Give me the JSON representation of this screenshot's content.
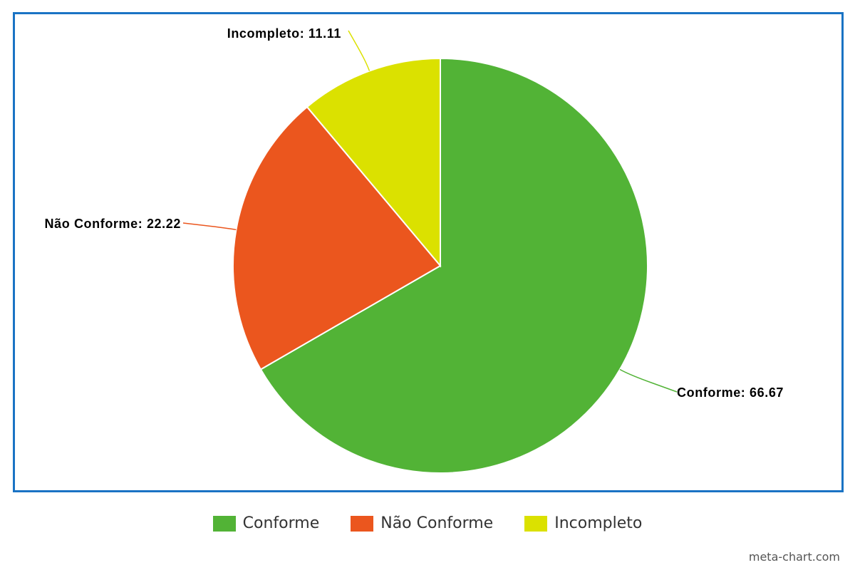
{
  "chart_data": {
    "type": "pie",
    "slices": [
      {
        "label": "Conforme",
        "value": 66.67,
        "color": "#52b336",
        "data_label": "Conforme: 66.67"
      },
      {
        "label": "Não Conforme",
        "value": 22.22,
        "color": "#eb561e",
        "data_label": "Não Conforme: 22.22"
      },
      {
        "label": "Incompleto",
        "value": 11.11,
        "color": "#dbe100",
        "data_label": "Incompleto: 11.11"
      }
    ],
    "legend_position": "bottom"
  },
  "frame_border_color": "#1a73c4",
  "watermark": "meta-chart.com"
}
